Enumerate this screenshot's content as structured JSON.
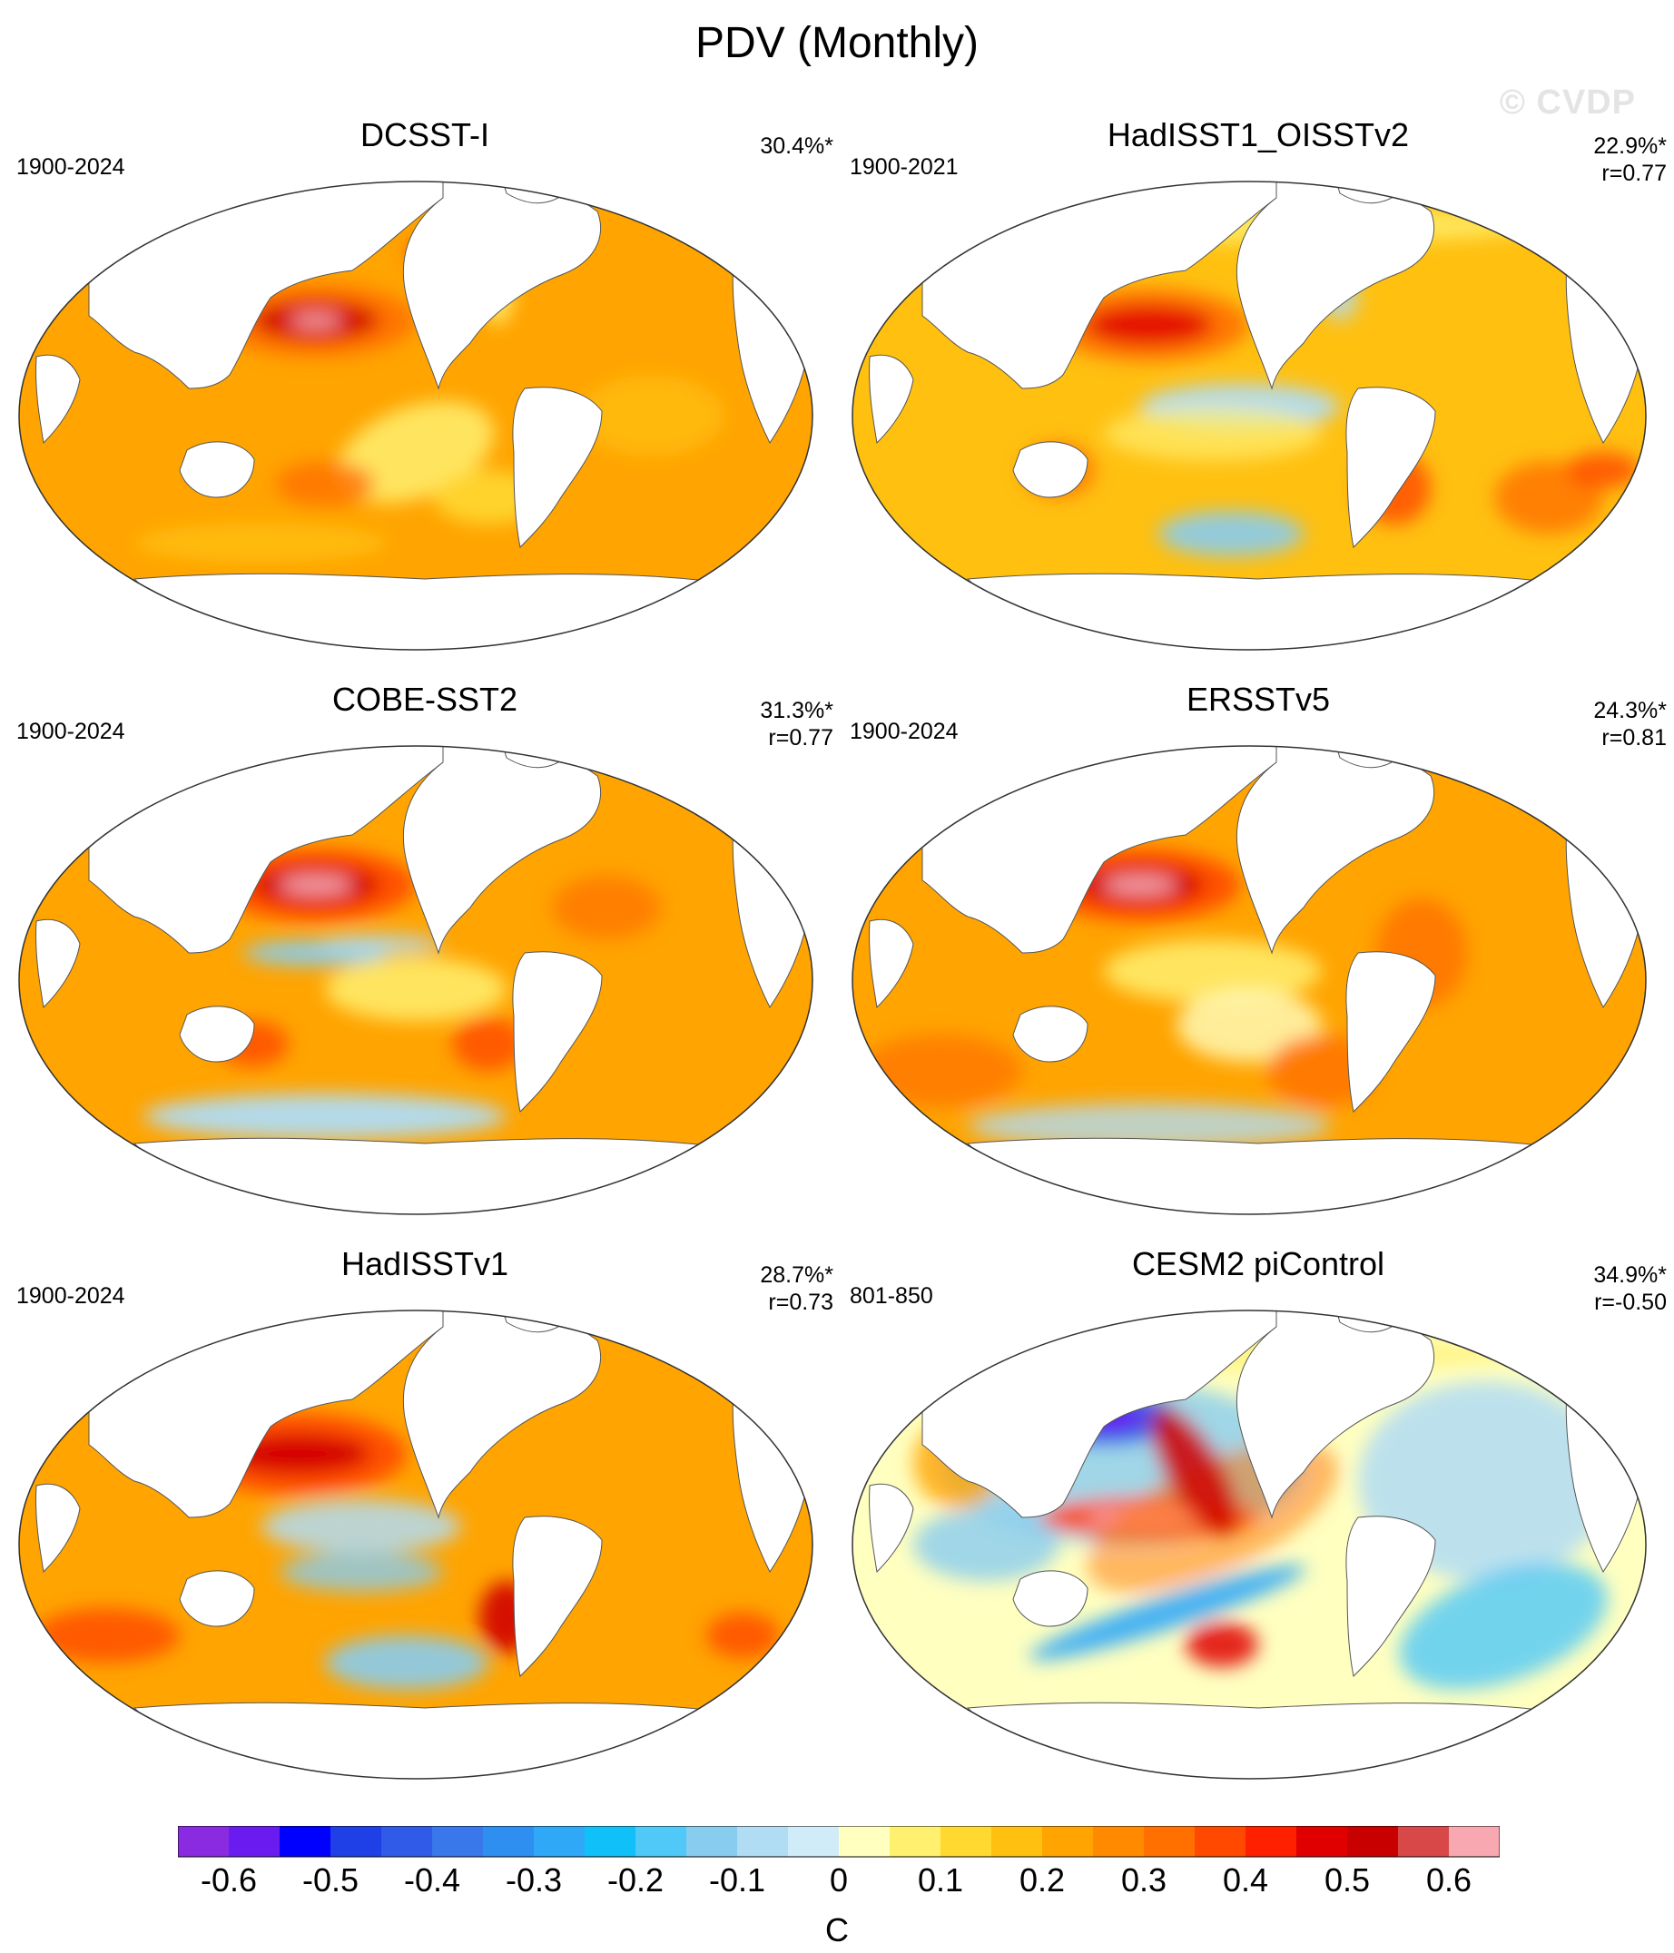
{
  "title": "PDV (Monthly)",
  "watermark": "© CVDP",
  "panels": [
    {
      "name": "DCSST-I",
      "period": "1900-2024",
      "stat1": "30.4%*",
      "stat2": "",
      "pattern": "obs-a"
    },
    {
      "name": "HadISST1_OISSTv2",
      "period": "1900-2021",
      "stat1": "22.9%*",
      "stat2": "r=0.77",
      "pattern": "obs-b"
    },
    {
      "name": "COBE-SST2",
      "period": "1900-2024",
      "stat1": "31.3%*",
      "stat2": "r=0.77",
      "pattern": "obs-c"
    },
    {
      "name": "ERSSTv5",
      "period": "1900-2024",
      "stat1": "24.3%*",
      "stat2": "r=0.81",
      "pattern": "obs-d"
    },
    {
      "name": "HadISSTv1",
      "period": "1900-2024",
      "stat1": "28.7%*",
      "stat2": "r=0.73",
      "pattern": "obs-e"
    },
    {
      "name": "CESM2 piControl",
      "period": "801-850",
      "stat1": "34.9%*",
      "stat2": "r=-0.50",
      "pattern": "model"
    }
  ],
  "colorbar": {
    "unit": "C",
    "labels": [
      "-0.6",
      "-0.5",
      "-0.4",
      "-0.3",
      "-0.2",
      "-0.1",
      "0",
      "0.1",
      "0.2",
      "0.3",
      "0.4",
      "0.5",
      "0.6"
    ],
    "colors": [
      "#8a2be2",
      "#6a1bf0",
      "#0000ff",
      "#1e40e6",
      "#2f5be8",
      "#3878ea",
      "#2f8ff0",
      "#30a8f8",
      "#10c0f8",
      "#50c8f8",
      "#88ccf0",
      "#b0dcf4",
      "#d0ecf8",
      "#ffffc0",
      "#fff070",
      "#ffd830",
      "#ffc010",
      "#ffa400",
      "#ff8a00",
      "#ff7000",
      "#ff4800",
      "#ff2000",
      "#e00000",
      "#c80000",
      "#d84848",
      "#f8a8b0"
    ]
  }
}
